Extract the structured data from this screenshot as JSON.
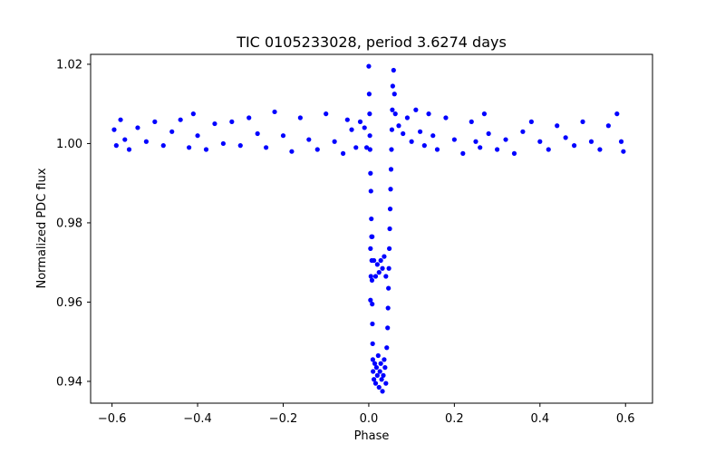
{
  "chart_data": {
    "type": "scatter",
    "title": "TIC 0105233028, period 3.6274 days",
    "xlabel": "Phase",
    "ylabel": "Normalized PDC flux",
    "xlim": [
      -0.65,
      0.663
    ],
    "ylim": [
      0.9345,
      1.0225
    ],
    "xticks": [
      -0.6,
      -0.4,
      -0.2,
      0.0,
      0.2,
      0.4,
      0.6
    ],
    "xtick_labels": [
      "−0.6",
      "−0.4",
      "−0.2",
      "0.0",
      "0.2",
      "0.4",
      "0.6"
    ],
    "yticks": [
      0.94,
      0.96,
      0.98,
      1.0,
      1.02
    ],
    "ytick_labels": [
      "0.94",
      "0.96",
      "0.98",
      "1.00",
      "1.02"
    ],
    "grid": false,
    "legend": "none",
    "marker_color": "#0000ff",
    "series": [
      {
        "points": [
          [
            -0.595,
            1.0035
          ],
          [
            -0.59,
            0.9995
          ],
          [
            -0.58,
            1.006
          ],
          [
            -0.57,
            1.001
          ],
          [
            -0.56,
            0.9985
          ],
          [
            -0.54,
            1.004
          ],
          [
            -0.52,
            1.0005
          ],
          [
            -0.5,
            1.0055
          ],
          [
            -0.48,
            0.9995
          ],
          [
            -0.46,
            1.003
          ],
          [
            -0.44,
            1.006
          ],
          [
            -0.42,
            0.999
          ],
          [
            -0.41,
            1.0075
          ],
          [
            -0.4,
            1.002
          ],
          [
            -0.38,
            0.9985
          ],
          [
            -0.36,
            1.005
          ],
          [
            -0.34,
            1.0
          ],
          [
            -0.32,
            1.0055
          ],
          [
            -0.3,
            0.9995
          ],
          [
            -0.28,
            1.0065
          ],
          [
            -0.26,
            1.0025
          ],
          [
            -0.24,
            0.999
          ],
          [
            -0.22,
            1.008
          ],
          [
            -0.2,
            1.002
          ],
          [
            -0.18,
            0.998
          ],
          [
            -0.16,
            1.0065
          ],
          [
            -0.14,
            1.001
          ],
          [
            -0.12,
            0.9985
          ],
          [
            -0.1,
            1.0075
          ],
          [
            -0.08,
            1.0005
          ],
          [
            -0.06,
            0.9975
          ],
          [
            -0.05,
            1.006
          ],
          [
            -0.04,
            1.0035
          ],
          [
            -0.03,
            0.999
          ],
          [
            -0.02,
            1.0055
          ],
          [
            -0.01,
            1.004
          ],
          [
            -0.005,
            0.999
          ],
          [
            0.0,
            1.0195
          ],
          [
            0.001,
            1.0125
          ],
          [
            0.002,
            1.0075
          ],
          [
            0.0025,
            1.002
          ],
          [
            0.003,
            0.9985
          ],
          [
            0.004,
            0.9925
          ],
          [
            0.005,
            0.988
          ],
          [
            0.006,
            0.981
          ],
          [
            0.0065,
            0.9765
          ],
          [
            0.007,
            0.9705
          ],
          [
            0.0075,
            0.9655
          ],
          [
            0.008,
            0.9595
          ],
          [
            0.0085,
            0.9545
          ],
          [
            0.009,
            0.9495
          ],
          [
            0.0095,
            0.9455
          ],
          [
            0.01,
            0.9425
          ],
          [
            0.012,
            0.9405
          ],
          [
            0.014,
            0.9445
          ],
          [
            0.016,
            0.9395
          ],
          [
            0.018,
            0.9435
          ],
          [
            0.02,
            0.9415
          ],
          [
            0.022,
            0.9465
          ],
          [
            0.024,
            0.9385
          ],
          [
            0.026,
            0.9425
          ],
          [
            0.028,
            0.9445
          ],
          [
            0.03,
            0.9405
          ],
          [
            0.032,
            0.9375
          ],
          [
            0.034,
            0.9415
          ],
          [
            0.036,
            0.9455
          ],
          [
            0.038,
            0.9435
          ],
          [
            0.04,
            0.9395
          ],
          [
            0.042,
            0.9485
          ],
          [
            0.044,
            0.9535
          ],
          [
            0.045,
            0.9585
          ],
          [
            0.046,
            0.9635
          ],
          [
            0.047,
            0.9685
          ],
          [
            0.048,
            0.9735
          ],
          [
            0.049,
            0.9785
          ],
          [
            0.05,
            0.9835
          ],
          [
            0.051,
            0.9885
          ],
          [
            0.052,
            0.9935
          ],
          [
            0.053,
            0.9985
          ],
          [
            0.054,
            1.0035
          ],
          [
            0.055,
            1.0085
          ],
          [
            0.056,
            1.0145
          ],
          [
            0.058,
            1.0185
          ],
          [
            0.06,
            1.0125
          ],
          [
            0.062,
            1.0075
          ],
          [
            0.004,
            0.9735
          ],
          [
            0.005,
            0.9665
          ],
          [
            0.012,
            0.9705
          ],
          [
            0.016,
            0.9665
          ],
          [
            0.02,
            0.9695
          ],
          [
            0.024,
            0.9675
          ],
          [
            0.028,
            0.9705
          ],
          [
            0.032,
            0.9685
          ],
          [
            0.036,
            0.9715
          ],
          [
            0.04,
            0.9665
          ],
          [
            0.004,
            0.9605
          ],
          [
            0.008,
            0.9765
          ],
          [
            0.07,
            1.0045
          ],
          [
            0.08,
            1.0025
          ],
          [
            0.09,
            1.0065
          ],
          [
            0.1,
            1.0005
          ],
          [
            0.11,
            1.0085
          ],
          [
            0.12,
            1.003
          ],
          [
            0.13,
            0.9995
          ],
          [
            0.14,
            1.0075
          ],
          [
            0.15,
            1.002
          ],
          [
            0.16,
            0.9985
          ],
          [
            0.18,
            1.0065
          ],
          [
            0.2,
            1.001
          ],
          [
            0.22,
            0.9975
          ],
          [
            0.24,
            1.0055
          ],
          [
            0.25,
            1.0005
          ],
          [
            0.26,
            0.999
          ],
          [
            0.27,
            1.0075
          ],
          [
            0.28,
            1.0025
          ],
          [
            0.3,
            0.9985
          ],
          [
            0.32,
            1.001
          ],
          [
            0.34,
            0.9975
          ],
          [
            0.36,
            1.003
          ],
          [
            0.38,
            1.0055
          ],
          [
            0.4,
            1.0005
          ],
          [
            0.42,
            0.9985
          ],
          [
            0.44,
            1.0045
          ],
          [
            0.46,
            1.0015
          ],
          [
            0.48,
            0.9995
          ],
          [
            0.5,
            1.0055
          ],
          [
            0.52,
            1.0005
          ],
          [
            0.54,
            0.9985
          ],
          [
            0.56,
            1.0045
          ],
          [
            0.58,
            1.0075
          ],
          [
            0.59,
            1.0005
          ],
          [
            0.595,
            0.998
          ]
        ]
      }
    ]
  }
}
